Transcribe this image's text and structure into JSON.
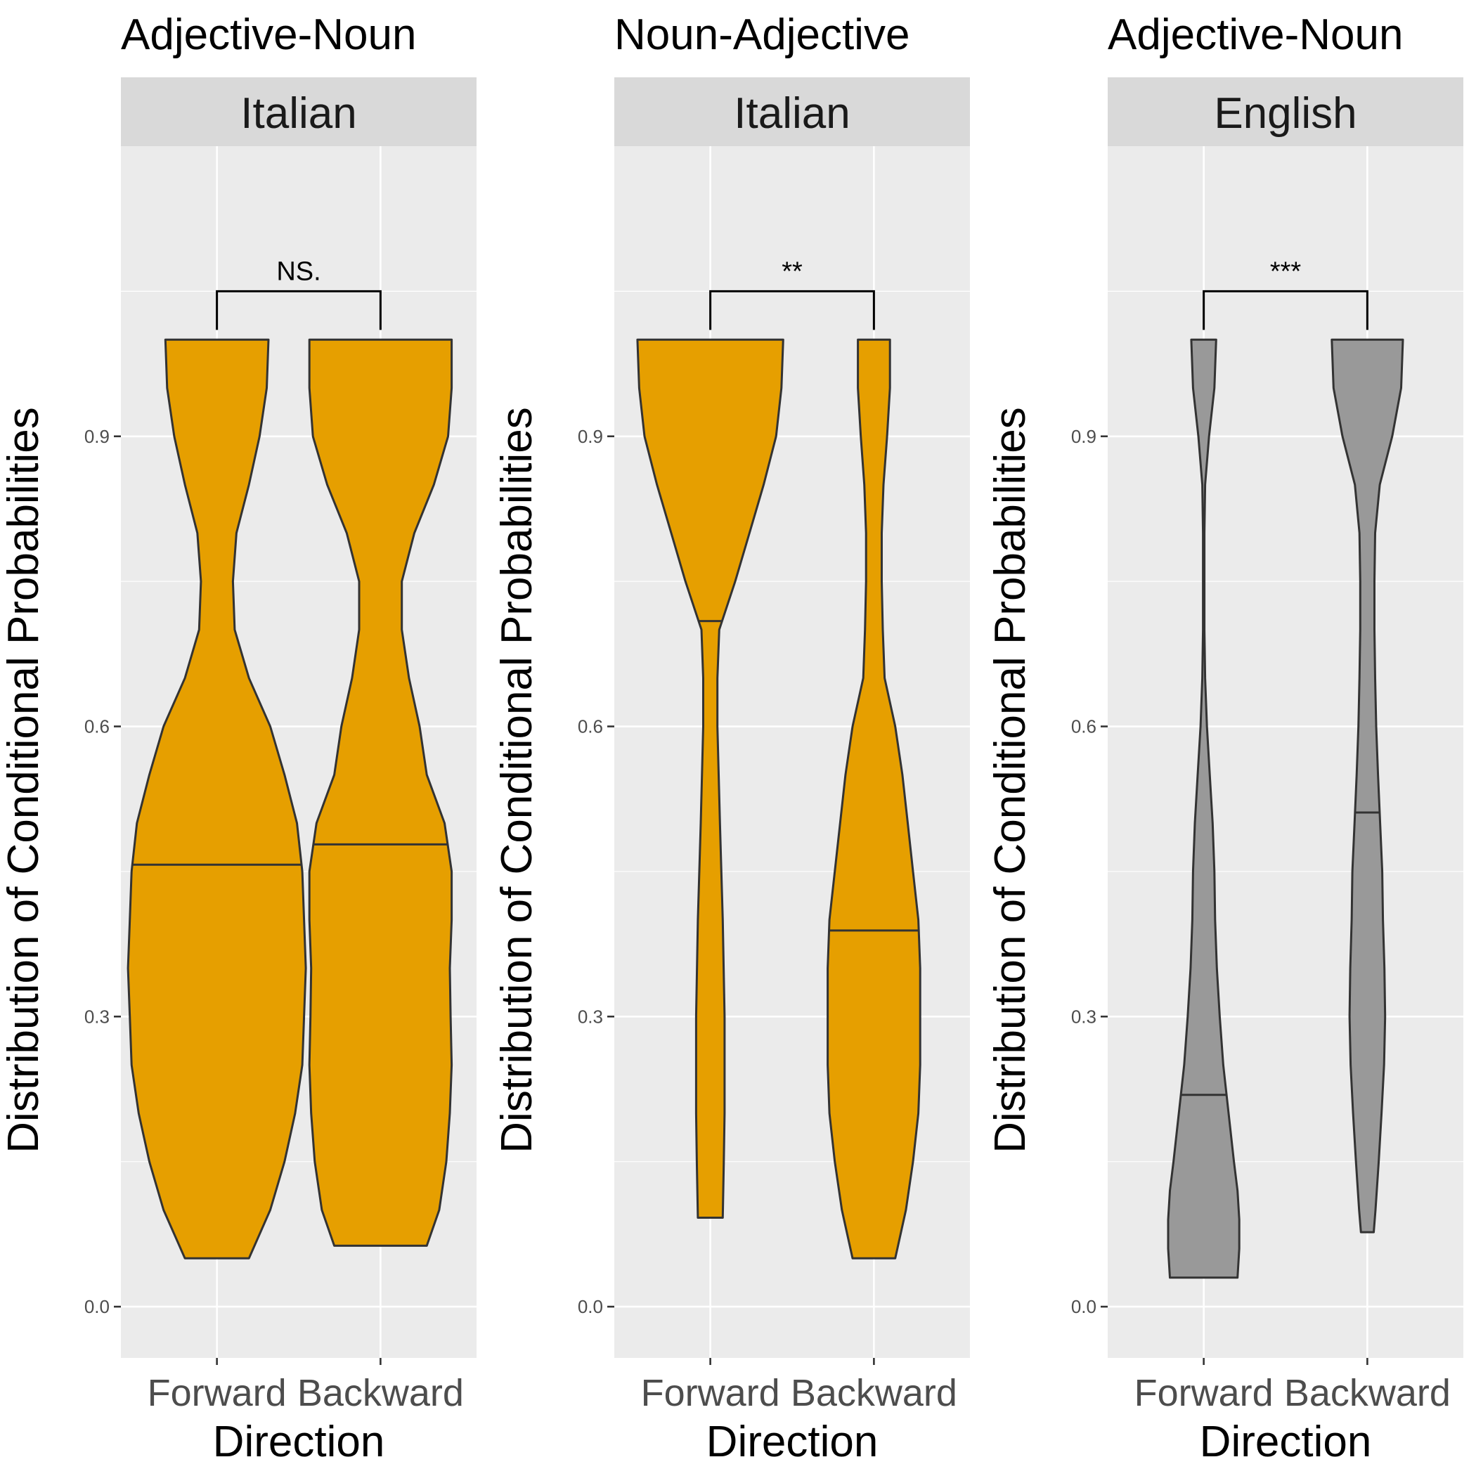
{
  "colors": {
    "panel_bg": "#EBEBEB",
    "strip_bg": "#D9D9D9",
    "grid": "#FFFFFF",
    "outline": "#333333"
  },
  "chart_data": [
    {
      "type": "violin",
      "title": "Adjective-Noun",
      "facet_label": "Italian",
      "xlabel": "Direction",
      "ylabel": "Distribution of Conditional Probabilities",
      "categories": [
        "Forward",
        "Backward"
      ],
      "y_ticks": [
        "0.0",
        "0.3",
        "0.6",
        "0.9"
      ],
      "ylim": [
        -0.053,
        1.2
      ],
      "fill": "#E69F00",
      "significance": "NS.",
      "violins": [
        {
          "category": "Forward",
          "min": 0.05,
          "max": 1.0,
          "median": 0.457,
          "profile": [
            [
              0.05,
              0.09
            ],
            [
              0.1,
              0.15
            ],
            [
              0.15,
              0.19
            ],
            [
              0.2,
              0.22
            ],
            [
              0.25,
              0.24
            ],
            [
              0.3,
              0.245
            ],
            [
              0.35,
              0.25
            ],
            [
              0.4,
              0.245
            ],
            [
              0.45,
              0.24
            ],
            [
              0.5,
              0.225
            ],
            [
              0.55,
              0.19
            ],
            [
              0.6,
              0.15
            ],
            [
              0.65,
              0.09
            ],
            [
              0.7,
              0.05
            ],
            [
              0.75,
              0.045
            ],
            [
              0.8,
              0.055
            ],
            [
              0.85,
              0.09
            ],
            [
              0.9,
              0.12
            ],
            [
              0.95,
              0.14
            ],
            [
              1.0,
              0.145
            ]
          ]
        },
        {
          "category": "Backward",
          "min": 0.063,
          "max": 1.0,
          "median": 0.478,
          "profile": [
            [
              0.063,
              0.13
            ],
            [
              0.1,
              0.165
            ],
            [
              0.15,
              0.185
            ],
            [
              0.2,
              0.195
            ],
            [
              0.25,
              0.2
            ],
            [
              0.3,
              0.197
            ],
            [
              0.35,
              0.195
            ],
            [
              0.4,
              0.2
            ],
            [
              0.45,
              0.2
            ],
            [
              0.5,
              0.18
            ],
            [
              0.55,
              0.13
            ],
            [
              0.6,
              0.11
            ],
            [
              0.65,
              0.08
            ],
            [
              0.7,
              0.06
            ],
            [
              0.75,
              0.06
            ],
            [
              0.8,
              0.095
            ],
            [
              0.85,
              0.15
            ],
            [
              0.9,
              0.19
            ],
            [
              0.95,
              0.2
            ],
            [
              1.0,
              0.2
            ]
          ]
        }
      ]
    },
    {
      "type": "violin",
      "title": "Noun-Adjective",
      "facet_label": "Italian",
      "xlabel": "Direction",
      "ylabel": "Distribution of Conditional Probabilities",
      "categories": [
        "Forward",
        "Backward"
      ],
      "y_ticks": [
        "0.0",
        "0.3",
        "0.6",
        "0.9"
      ],
      "ylim": [
        -0.053,
        1.2
      ],
      "fill": "#E69F00",
      "significance": "**",
      "violins": [
        {
          "category": "Forward",
          "min": 0.092,
          "max": 1.0,
          "median": 0.709,
          "profile": [
            [
              0.092,
              0.035
            ],
            [
              0.15,
              0.038
            ],
            [
              0.2,
              0.04
            ],
            [
              0.3,
              0.04
            ],
            [
              0.4,
              0.035
            ],
            [
              0.5,
              0.027
            ],
            [
              0.6,
              0.02
            ],
            [
              0.65,
              0.02
            ],
            [
              0.7,
              0.025
            ],
            [
              0.75,
              0.07
            ],
            [
              0.8,
              0.11
            ],
            [
              0.85,
              0.15
            ],
            [
              0.9,
              0.185
            ],
            [
              0.95,
              0.2
            ],
            [
              1.0,
              0.205
            ]
          ]
        },
        {
          "category": "Backward",
          "min": 0.05,
          "max": 1.0,
          "median": 0.389,
          "profile": [
            [
              0.05,
              0.06
            ],
            [
              0.1,
              0.09
            ],
            [
              0.15,
              0.11
            ],
            [
              0.2,
              0.125
            ],
            [
              0.25,
              0.13
            ],
            [
              0.3,
              0.13
            ],
            [
              0.35,
              0.13
            ],
            [
              0.4,
              0.125
            ],
            [
              0.45,
              0.11
            ],
            [
              0.5,
              0.095
            ],
            [
              0.55,
              0.08
            ],
            [
              0.6,
              0.06
            ],
            [
              0.65,
              0.03
            ],
            [
              0.7,
              0.025
            ],
            [
              0.75,
              0.022
            ],
            [
              0.8,
              0.022
            ],
            [
              0.85,
              0.027
            ],
            [
              0.9,
              0.037
            ],
            [
              0.95,
              0.045
            ],
            [
              1.0,
              0.045
            ]
          ]
        }
      ]
    },
    {
      "type": "violin",
      "title": "Adjective-Noun",
      "facet_label": "English",
      "xlabel": "Direction",
      "ylabel": "Distribution of Conditional Probabilities",
      "categories": [
        "Forward",
        "Backward"
      ],
      "y_ticks": [
        "0.0",
        "0.3",
        "0.6",
        "0.9"
      ],
      "ylim": [
        -0.053,
        1.2
      ],
      "fill": "#999999",
      "significance": "***",
      "violins": [
        {
          "category": "Forward",
          "min": 0.03,
          "max": 1.0,
          "median": 0.219,
          "profile": [
            [
              0.03,
              0.095
            ],
            [
              0.06,
              0.1
            ],
            [
              0.09,
              0.1
            ],
            [
              0.12,
              0.095
            ],
            [
              0.15,
              0.085
            ],
            [
              0.2,
              0.07
            ],
            [
              0.25,
              0.055
            ],
            [
              0.3,
              0.045
            ],
            [
              0.35,
              0.037
            ],
            [
              0.4,
              0.032
            ],
            [
              0.45,
              0.03
            ],
            [
              0.5,
              0.025
            ],
            [
              0.55,
              0.017
            ],
            [
              0.6,
              0.009
            ],
            [
              0.65,
              0.004
            ],
            [
              0.7,
              0.002
            ],
            [
              0.75,
              0.002
            ],
            [
              0.8,
              0.002
            ],
            [
              0.85,
              0.004
            ],
            [
              0.9,
              0.015
            ],
            [
              0.95,
              0.03
            ],
            [
              1.0,
              0.035
            ]
          ]
        },
        {
          "category": "Backward",
          "min": 0.077,
          "max": 1.0,
          "median": 0.511,
          "profile": [
            [
              0.077,
              0.018
            ],
            [
              0.1,
              0.023
            ],
            [
              0.15,
              0.032
            ],
            [
              0.2,
              0.04
            ],
            [
              0.25,
              0.047
            ],
            [
              0.3,
              0.05
            ],
            [
              0.35,
              0.048
            ],
            [
              0.4,
              0.044
            ],
            [
              0.45,
              0.042
            ],
            [
              0.5,
              0.036
            ],
            [
              0.55,
              0.03
            ],
            [
              0.6,
              0.025
            ],
            [
              0.65,
              0.022
            ],
            [
              0.7,
              0.02
            ],
            [
              0.75,
              0.02
            ],
            [
              0.8,
              0.022
            ],
            [
              0.85,
              0.035
            ],
            [
              0.9,
              0.07
            ],
            [
              0.95,
              0.095
            ],
            [
              1.0,
              0.1
            ]
          ]
        }
      ]
    }
  ]
}
